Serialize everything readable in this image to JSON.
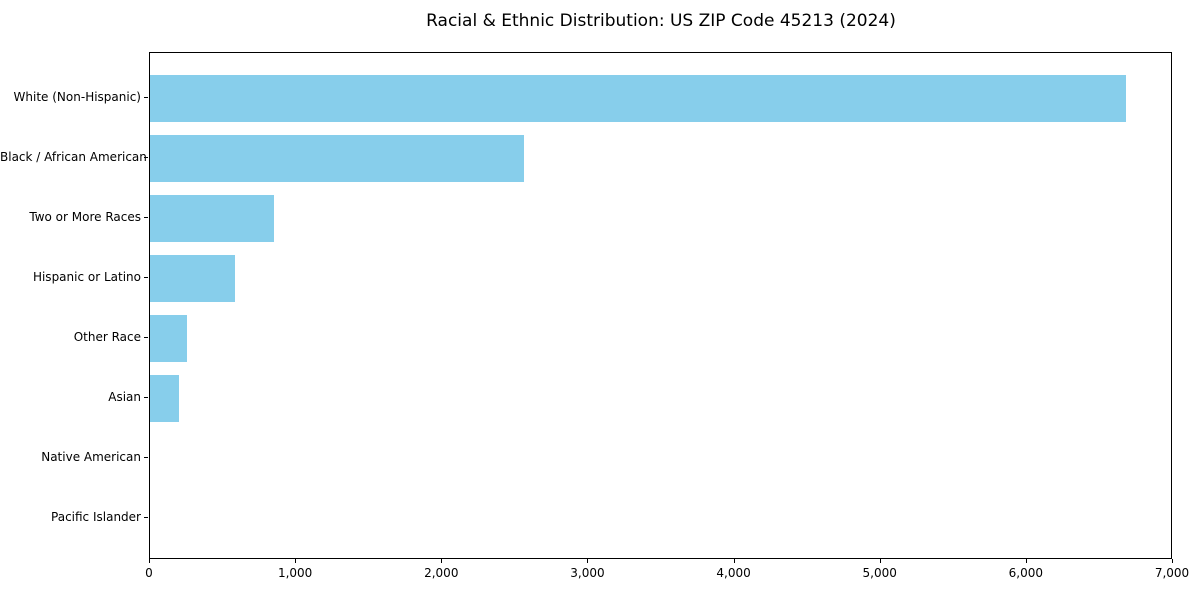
{
  "chart_data": {
    "type": "bar",
    "orientation": "horizontal",
    "title": "Racial & Ethnic Distribution: US ZIP Code 45213 (2024)",
    "categories": [
      "White (Non-Hispanic)",
      "Black / African American",
      "Two or More Races",
      "Hispanic or Latino",
      "Other Race",
      "Asian",
      "Native American",
      "Pacific Islander"
    ],
    "values": [
      6680,
      2560,
      850,
      585,
      255,
      200,
      0,
      0
    ],
    "xlabel": "",
    "ylabel": "",
    "xlim": [
      0,
      7000
    ],
    "x_ticks": [
      0,
      1000,
      2000,
      3000,
      4000,
      5000,
      6000,
      7000
    ],
    "x_tick_labels": [
      "0",
      "1,000",
      "2,000",
      "3,000",
      "4,000",
      "5,000",
      "6,000",
      "7,000"
    ],
    "bar_color": "#87CEEB",
    "grid": false,
    "legend": null
  }
}
